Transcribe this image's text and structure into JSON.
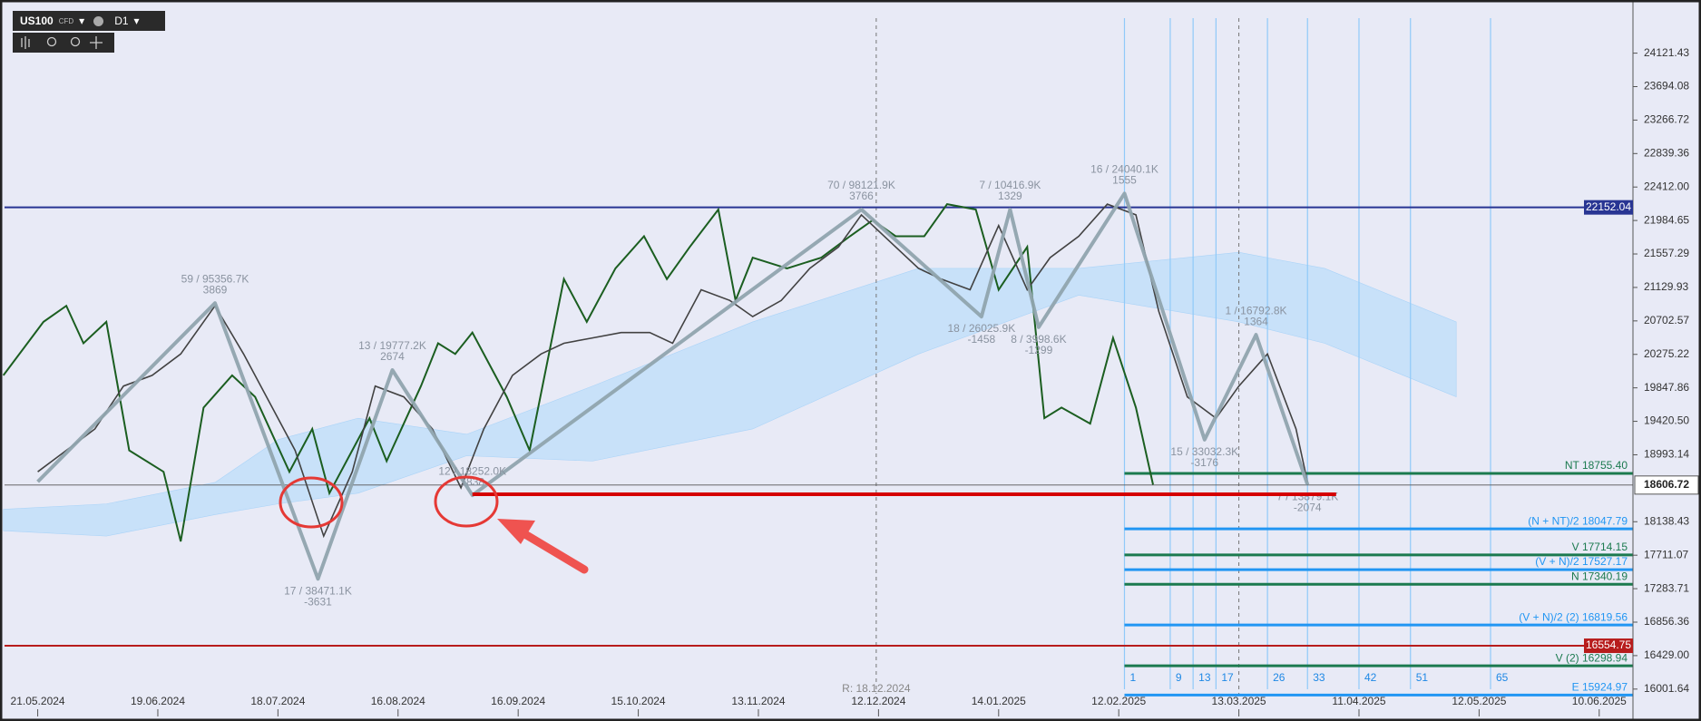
{
  "chart_data": {
    "type": "line",
    "symbol": "US100",
    "instrument_type": "CFD",
    "timeframe": "D1",
    "xlim": [
      -5.8,
      278.9
    ],
    "ylim": [
      15652,
      24742
    ],
    "xticks": [
      {
        "value": 0,
        "label": "21.05.2024"
      },
      {
        "value": 21,
        "label": "19.06.2024"
      },
      {
        "value": 42,
        "label": "18.07.2024"
      },
      {
        "value": 63,
        "label": "16.08.2024"
      },
      {
        "value": 84,
        "label": "16.09.2024"
      },
      {
        "value": 105,
        "label": "15.10.2024"
      },
      {
        "value": 126,
        "label": "13.11.2024"
      },
      {
        "value": 147,
        "label": "12.12.2024"
      },
      {
        "value": 168,
        "label": "14.01.2025"
      },
      {
        "value": 189,
        "label": "12.02.2025"
      },
      {
        "value": 210,
        "label": "13.03.2025"
      },
      {
        "value": 231,
        "label": "11.04.2025"
      },
      {
        "value": 252,
        "label": "12.05.2025"
      },
      {
        "value": 273,
        "label": "10.06.2025"
      }
    ],
    "yticks": [
      24121.43,
      23694.08,
      23266.72,
      22839.36,
      {
        "value": 22412,
        "label": "22412.00"
      },
      21984.65,
      21557.29,
      21129.93,
      20702.57,
      20275.22,
      19847.86,
      {
        "value": 19420.5,
        "label": "19420.50"
      },
      18993.14,
      18138.43,
      17711.07,
      17283.71,
      16856.36,
      {
        "value": 16429,
        "label": "16429.00"
      },
      16001.64
    ],
    "cloud": {
      "color": "#bbdefb",
      "x": [
        -6,
        12,
        31,
        42,
        56,
        75,
        97,
        125,
        154,
        182,
        210,
        225,
        248
      ],
      "upper": [
        18297,
        18366,
        18640,
        19186,
        19460,
        19255,
        19870,
        20690,
        21373,
        21373,
        21578,
        21373,
        20690
      ],
      "lower": [
        18024,
        17955,
        18229,
        18366,
        18503,
        18981,
        18913,
        19323,
        20280,
        21031,
        20690,
        20417,
        19733
      ]
    },
    "lagging_line": {
      "color": "#1b5e20",
      "x": [
        -6,
        1,
        5,
        8,
        12,
        16,
        22,
        25,
        29,
        34,
        38,
        44,
        48,
        51,
        54,
        58,
        61,
        67,
        70,
        73,
        76,
        82,
        86,
        92,
        96,
        101,
        106,
        110,
        114,
        119,
        122,
        125,
        131,
        137,
        142,
        146,
        150,
        155,
        159,
        164,
        168,
        173,
        176,
        179,
        184,
        188,
        192,
        195
      ],
      "values": [
        20007,
        20690,
        20895,
        20417,
        20690,
        19050,
        18776,
        17887,
        19596,
        20007,
        19733,
        18776,
        19323,
        18503,
        18913,
        19460,
        18913,
        19870,
        20417,
        20280,
        20554,
        19733,
        19050,
        21237,
        20690,
        21373,
        21783,
        21237,
        21647,
        22125,
        20963,
        21510,
        21373,
        21510,
        21783,
        21989,
        21783,
        21783,
        22193,
        22125,
        21100,
        21647,
        19460,
        19596,
        19391,
        20485,
        19596,
        18612
      ]
    },
    "price": {
      "color": "#424242",
      "x": [
        0,
        5,
        10,
        15,
        20,
        25,
        31,
        36,
        41,
        45,
        50,
        55,
        59,
        64,
        69,
        74,
        78,
        83,
        88,
        92,
        97,
        102,
        107,
        111,
        116,
        121,
        125,
        130,
        135,
        140,
        144,
        149,
        154,
        158,
        163,
        168,
        173,
        177,
        182,
        187,
        192,
        196,
        201,
        206,
        210,
        215,
        220,
        222
      ],
      "values": [
        18776,
        19050,
        19323,
        19870,
        20007,
        20280,
        20895,
        20280,
        19596,
        19050,
        17955,
        18776,
        19870,
        19733,
        19323,
        18571,
        19323,
        20007,
        20280,
        20417,
        20485,
        20554,
        20554,
        20417,
        21100,
        20963,
        20758,
        20963,
        21373,
        21647,
        22057,
        21715,
        21373,
        21236,
        21100,
        21920,
        21100,
        21510,
        21783,
        22193,
        22057,
        20826,
        19733,
        19460,
        19870,
        20280,
        19323,
        18640
      ]
    },
    "zigzag": {
      "color": "#90a4ae",
      "x": [
        0,
        31,
        49,
        62,
        76,
        144,
        165,
        170,
        175,
        190,
        204,
        213,
        222
      ],
      "values": [
        18650,
        20930,
        17409,
        20075,
        18476,
        22125,
        20758,
        22125,
        20622,
        22330,
        19186,
        20526,
        18612
      ],
      "labels": [
        null,
        "59 / 95356.7K",
        "17 / 38471.1K",
        "13 / 19777.2K",
        "12 / 18252.0K",
        "70 / 98121.9K",
        "18 / 26025.9K",
        "7 / 10416.9K",
        "8 / 3998.6K",
        "16 / 24040.1K",
        "15 / 33032.3K",
        "1 / 16792.8K",
        "7 / 13879.1K"
      ],
      "deltas": [
        null,
        3869,
        -3631,
        2674,
        1838,
        3766,
        -1458,
        1329,
        -1299,
        1555,
        -3176,
        1364,
        -2074
      ]
    },
    "trendline": {
      "color": "#d50000",
      "x": [
        76,
        227
      ],
      "values": [
        18489,
        18489
      ]
    },
    "price_lines": [
      {
        "value": 22152.04,
        "label": "22152.04",
        "color": "#283593"
      },
      {
        "value": 16554.75,
        "label": "16554.75",
        "color": "#b71c1c"
      },
      {
        "value": 18606.72,
        "label": "18606.72",
        "color": "#555555",
        "fill": "#ffffff"
      }
    ],
    "projection_levels": [
      {
        "value": 18755.4,
        "label": "NT 18755.40",
        "color": "#1b7a4f",
        "from": 190
      },
      {
        "value": 18047.79,
        "label": "(N + NT)/2 18047.79",
        "color": "#2196f3",
        "from": 190
      },
      {
        "value": 17714.15,
        "label": "V 17714.15",
        "color": "#1b7a4f",
        "from": 190
      },
      {
        "value": 17527.17,
        "label": "(V + N)/2 17527.17",
        "color": "#2196f3",
        "from": 190
      },
      {
        "value": 17340.19,
        "label": "N 17340.19",
        "color": "#1b7a4f",
        "from": 190
      },
      {
        "value": 16819.56,
        "label": "(V + N)/2 (2) 16819.56",
        "color": "#2196f3",
        "from": 190
      },
      {
        "value": 16298.94,
        "label": "V (2) 16298.94",
        "color": "#1b7a4f",
        "from": 190
      },
      {
        "value": 15924.97,
        "label": "E 15924.97",
        "color": "#2196f3",
        "from": 190
      }
    ],
    "time_lines": {
      "color": "#90caf9",
      "x": [
        190,
        198,
        202,
        206,
        215,
        222,
        231,
        240,
        254
      ],
      "labels": [
        "1",
        "9",
        "13",
        "17",
        "26",
        "33",
        "42",
        "51",
        "65"
      ]
    },
    "session_lines": {
      "x": [
        146.6,
        210
      ],
      "labels": [
        "R: 18.12.2024",
        null
      ]
    }
  }
}
